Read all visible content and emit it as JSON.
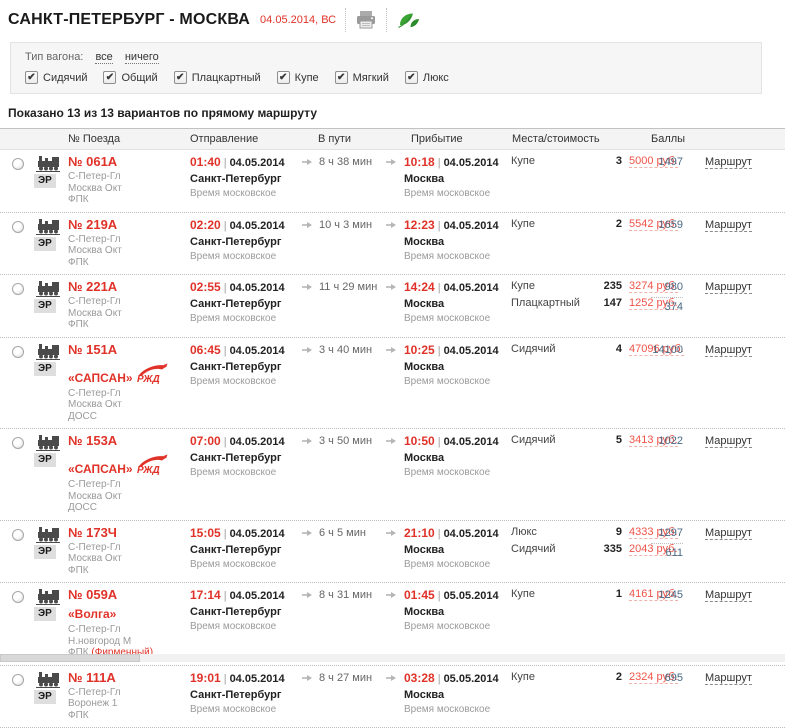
{
  "header": {
    "title": "САНКТ-ПЕТЕРБУРГ - МОСКВА",
    "date": "04.05.2014, ВС"
  },
  "filter": {
    "label": "Тип вагона:",
    "select_all": "все",
    "select_none": "ничего",
    "options": [
      {
        "label": "Сидячий",
        "checked": true
      },
      {
        "label": "Общий",
        "checked": true
      },
      {
        "label": "Плацкартный",
        "checked": true
      },
      {
        "label": "Купе",
        "checked": true
      },
      {
        "label": "Мягкий",
        "checked": true
      },
      {
        "label": "Люкс",
        "checked": true
      }
    ]
  },
  "summary": "Показано 13 из 13 вариантов по прямому маршруту",
  "table": {
    "columns": {
      "train": "№ Поезда",
      "departure": "Отправление",
      "duration": "В пути",
      "arrival": "Прибытие",
      "seats": "Места/стоимость",
      "points": "Баллы"
    },
    "er_badge": "ЭР",
    "route_link": "Маршрут",
    "rows": [
      {
        "number": "№ 061А",
        "name": "",
        "rzd_logo": false,
        "stations": [
          "С-Петер-Гл",
          "Москва Окт",
          "ФПК"
        ],
        "note": "",
        "departure": {
          "time": "01:40",
          "date": "04.05.2014",
          "city": "Санкт-Петербург",
          "timezone": "Время московское"
        },
        "duration": "8 ч 38 мин",
        "arrival": {
          "time": "10:18",
          "date": "04.05.2014",
          "city": "Москва",
          "timezone": "Время московское"
        },
        "seats": [
          {
            "class": "Купе",
            "count": "3",
            "price": "5000 руб."
          }
        ],
        "points": [
          "1497"
        ]
      },
      {
        "number": "№ 219А",
        "name": "",
        "rzd_logo": false,
        "stations": [
          "С-Петер-Гл",
          "Москва Окт",
          "ФПК"
        ],
        "note": "",
        "departure": {
          "time": "02:20",
          "date": "04.05.2014",
          "city": "Санкт-Петербург",
          "timezone": "Время московское"
        },
        "duration": "10 ч 3 мин",
        "arrival": {
          "time": "12:23",
          "date": "04.05.2014",
          "city": "Москва",
          "timezone": "Время московское"
        },
        "seats": [
          {
            "class": "Купе",
            "count": "2",
            "price": "5542 руб."
          }
        ],
        "points": [
          "1659"
        ]
      },
      {
        "number": "№ 221А",
        "name": "",
        "rzd_logo": false,
        "stations": [
          "С-Петер-Гл",
          "Москва Окт",
          "ФПК"
        ],
        "note": "",
        "departure": {
          "time": "02:55",
          "date": "04.05.2014",
          "city": "Санкт-Петербург",
          "timezone": "Время московское"
        },
        "duration": "11 ч 29 мин",
        "arrival": {
          "time": "14:24",
          "date": "04.05.2014",
          "city": "Москва",
          "timezone": "Время московское"
        },
        "seats": [
          {
            "class": "Купе",
            "count": "235",
            "price": "3274 руб."
          },
          {
            "class": "Плацкартный",
            "count": "147",
            "price": "1252 руб."
          }
        ],
        "points": [
          "980",
          "374"
        ]
      },
      {
        "number": "№ 151А",
        "name": "«САПСАН»",
        "rzd_logo": true,
        "stations": [
          "С-Петер-Гл",
          "Москва Окт",
          "ДОСС"
        ],
        "note": "",
        "departure": {
          "time": "06:45",
          "date": "04.05.2014",
          "city": "Санкт-Петербург",
          "timezone": "Время московское"
        },
        "duration": "3 ч 40 мин",
        "arrival": {
          "time": "10:25",
          "date": "04.05.2014",
          "city": "Москва",
          "timezone": "Время московское"
        },
        "seats": [
          {
            "class": "Сидячий",
            "count": "4",
            "price": "47096 руб."
          }
        ],
        "points": [
          "14100"
        ]
      },
      {
        "number": "№ 153А",
        "name": "«САПСАН»",
        "rzd_logo": true,
        "stations": [
          "С-Петер-Гл",
          "Москва Окт",
          "ДОСС"
        ],
        "note": "",
        "departure": {
          "time": "07:00",
          "date": "04.05.2014",
          "city": "Санкт-Петербург",
          "timezone": "Время московское"
        },
        "duration": "3 ч 50 мин",
        "arrival": {
          "time": "10:50",
          "date": "04.05.2014",
          "city": "Москва",
          "timezone": "Время московское"
        },
        "seats": [
          {
            "class": "Сидячий",
            "count": "5",
            "price": "3413 руб."
          }
        ],
        "points": [
          "1022"
        ]
      },
      {
        "number": "№ 173Ч",
        "name": "",
        "rzd_logo": false,
        "stations": [
          "С-Петер-Гл",
          "Москва Окт",
          "ФПК"
        ],
        "note": "",
        "departure": {
          "time": "15:05",
          "date": "04.05.2014",
          "city": "Санкт-Петербург",
          "timezone": "Время московское"
        },
        "duration": "6 ч 5 мин",
        "arrival": {
          "time": "21:10",
          "date": "04.05.2014",
          "city": "Москва",
          "timezone": "Время московское"
        },
        "seats": [
          {
            "class": "Люкс",
            "count": "9",
            "price": "4333 руб."
          },
          {
            "class": "Сидячий",
            "count": "335",
            "price": "2043 руб."
          }
        ],
        "points": [
          "1297",
          "611"
        ]
      },
      {
        "number": "№ 059А",
        "name": "«Волга»",
        "rzd_logo": false,
        "stations": [
          "С-Петер-Гл",
          "Н.новгород М",
          "ФПК"
        ],
        "note": "(Фирменный)",
        "departure": {
          "time": "17:14",
          "date": "04.05.2014",
          "city": "Санкт-Петербург",
          "timezone": "Время московское"
        },
        "duration": "8 ч 31 мин",
        "arrival": {
          "time": "01:45",
          "date": "05.05.2014",
          "city": "Москва",
          "timezone": "Время московское"
        },
        "seats": [
          {
            "class": "Купе",
            "count": "1",
            "price": "4161 руб."
          }
        ],
        "points": [
          "1245"
        ]
      },
      {
        "number": "№ 111А",
        "name": "",
        "rzd_logo": false,
        "stations": [
          "С-Петер-Гл",
          "Воронеж 1",
          "ФПК"
        ],
        "note": "",
        "departure": {
          "time": "19:01",
          "date": "04.05.2014",
          "city": "Санкт-Петербург",
          "timezone": "Время московское"
        },
        "duration": "8 ч 27 мин",
        "arrival": {
          "time": "03:28",
          "date": "05.05.2014",
          "city": "Москва",
          "timezone": "Время московское"
        },
        "seats": [
          {
            "class": "Купе",
            "count": "2",
            "price": "2324 руб."
          }
        ],
        "points": [
          "695"
        ]
      }
    ]
  },
  "colors": {
    "accent_red": "#e03228",
    "price_red": "#ef5348",
    "eco_green": "#35a02f",
    "points_blue": "#4a6983"
  }
}
